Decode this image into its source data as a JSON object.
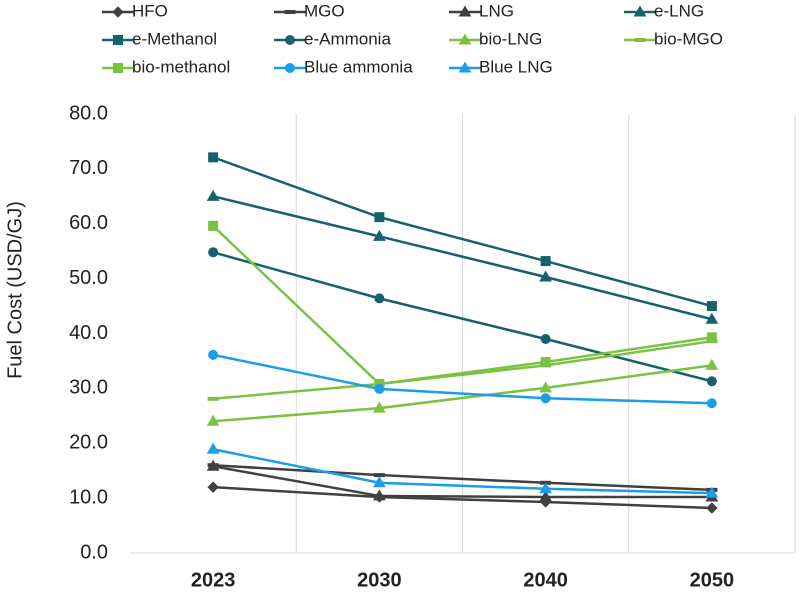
{
  "chart_data": {
    "type": "line",
    "y_label": "Fuel Cost (USD/GJ)",
    "categories": [
      "2023",
      "2030",
      "2040",
      "2050"
    ],
    "ylim": [
      0,
      80
    ],
    "yticks": [
      {
        "value": 0,
        "label": "0.0"
      },
      {
        "value": 10,
        "label": "10.0"
      },
      {
        "value": 20,
        "label": "20.0"
      },
      {
        "value": 30,
        "label": "30.0"
      },
      {
        "value": 40,
        "label": "40.0"
      },
      {
        "value": 50,
        "label": "50.0"
      },
      {
        "value": 60,
        "label": "60.0"
      },
      {
        "value": 70,
        "label": "70.0"
      },
      {
        "value": 80,
        "label": "80.0"
      }
    ],
    "grid": true,
    "legend": "top",
    "series": [
      {
        "name": "HFO",
        "color": "#404040",
        "marker": "diamond",
        "values": [
          12.0,
          10.2,
          9.3,
          8.2
        ]
      },
      {
        "name": "MGO",
        "color": "#404040",
        "marker": "dash",
        "values": [
          16.0,
          14.2,
          12.8,
          11.5
        ]
      },
      {
        "name": "LNG",
        "color": "#404040",
        "marker": "triangle",
        "values": [
          15.8,
          10.4,
          10.2,
          10.2
        ]
      },
      {
        "name": "e-LNG",
        "color": "#16616f",
        "marker": "triangle",
        "values": [
          65.0,
          57.7,
          50.3,
          42.6
        ]
      },
      {
        "name": "e-Methanol",
        "color": "#16616f",
        "marker": "square",
        "values": [
          72.1,
          61.2,
          53.2,
          45.0
        ]
      },
      {
        "name": "e-Ammonia",
        "color": "#16616f",
        "marker": "circle",
        "values": [
          54.8,
          46.4,
          39.0,
          31.3
        ]
      },
      {
        "name": "bio-LNG",
        "color": "#7cc242",
        "marker": "triangle",
        "values": [
          24.0,
          26.4,
          30.1,
          34.2
        ]
      },
      {
        "name": "bio-MGO",
        "color": "#7cc242",
        "marker": "dash",
        "values": [
          28.1,
          30.8,
          34.2,
          38.6
        ]
      },
      {
        "name": "bio-methanol",
        "color": "#7cc242",
        "marker": "square",
        "values": [
          59.6,
          30.8,
          34.8,
          39.3
        ]
      },
      {
        "name": "Blue ammonia",
        "color": "#1a9ee8",
        "marker": "circle",
        "values": [
          36.1,
          29.9,
          28.2,
          27.3
        ]
      },
      {
        "name": "Blue LNG",
        "color": "#1a9ee8",
        "marker": "triangle",
        "values": [
          18.9,
          12.8,
          11.7,
          10.9
        ]
      }
    ]
  }
}
